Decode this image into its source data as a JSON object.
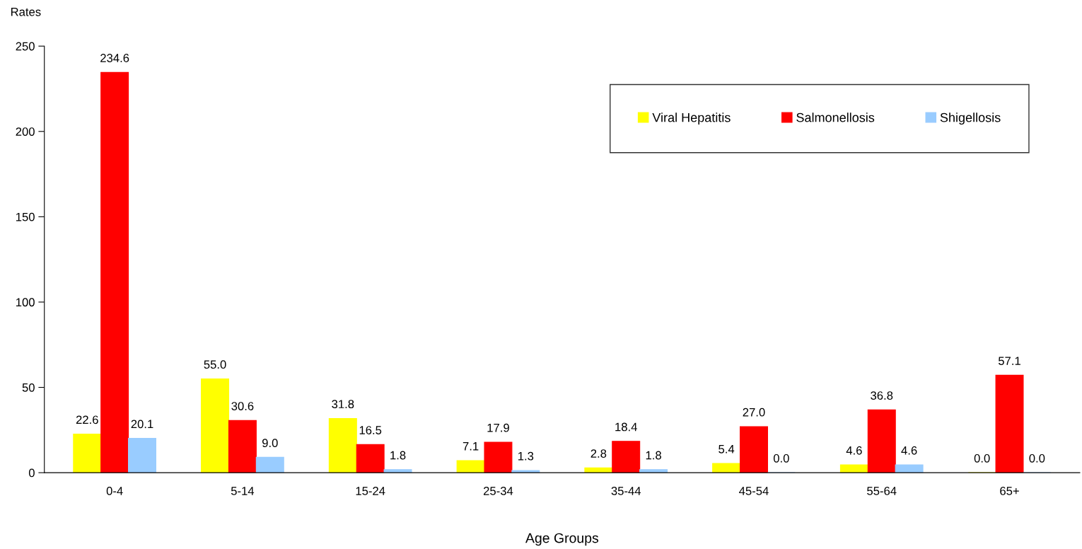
{
  "chart_data": {
    "type": "bar",
    "xlabel": "Age Groups",
    "ylabel": "Rates",
    "categories": [
      "0-4",
      "5-14",
      "15-24",
      "25-34",
      "35-44",
      "45-54",
      "55-64",
      "65+"
    ],
    "series": [
      {
        "name": "Viral Hepatitis",
        "color": "#ffff00",
        "values": [
          22.6,
          55.0,
          31.8,
          7.1,
          2.8,
          5.4,
          4.6,
          0.0
        ],
        "value_labels": [
          "22.6",
          "55.0",
          "31.8",
          "7.1",
          "2.8",
          "5.4",
          "4.6",
          "0.0"
        ]
      },
      {
        "name": "Salmonellosis",
        "color": "#ff0000",
        "values": [
          234.6,
          30.6,
          16.5,
          17.9,
          18.4,
          27.0,
          36.8,
          57.1
        ],
        "value_labels": [
          "234.6",
          "30.6",
          "16.5",
          "17.9",
          "18.4",
          "27.0",
          "36.8",
          "57.1"
        ]
      },
      {
        "name": "Shigellosis",
        "color": "#99ccff",
        "values": [
          20.1,
          9.0,
          1.8,
          1.3,
          1.8,
          0.0,
          4.6,
          0.0
        ],
        "value_labels": [
          "20.1",
          "9.0",
          "1.8",
          "1.3",
          "1.8",
          "0.0",
          "4.6",
          "0.0"
        ]
      }
    ],
    "ylim": [
      0,
      250
    ],
    "yticks": [
      0,
      50,
      100,
      150,
      200,
      250
    ],
    "grid": false,
    "legend": "top right"
  }
}
